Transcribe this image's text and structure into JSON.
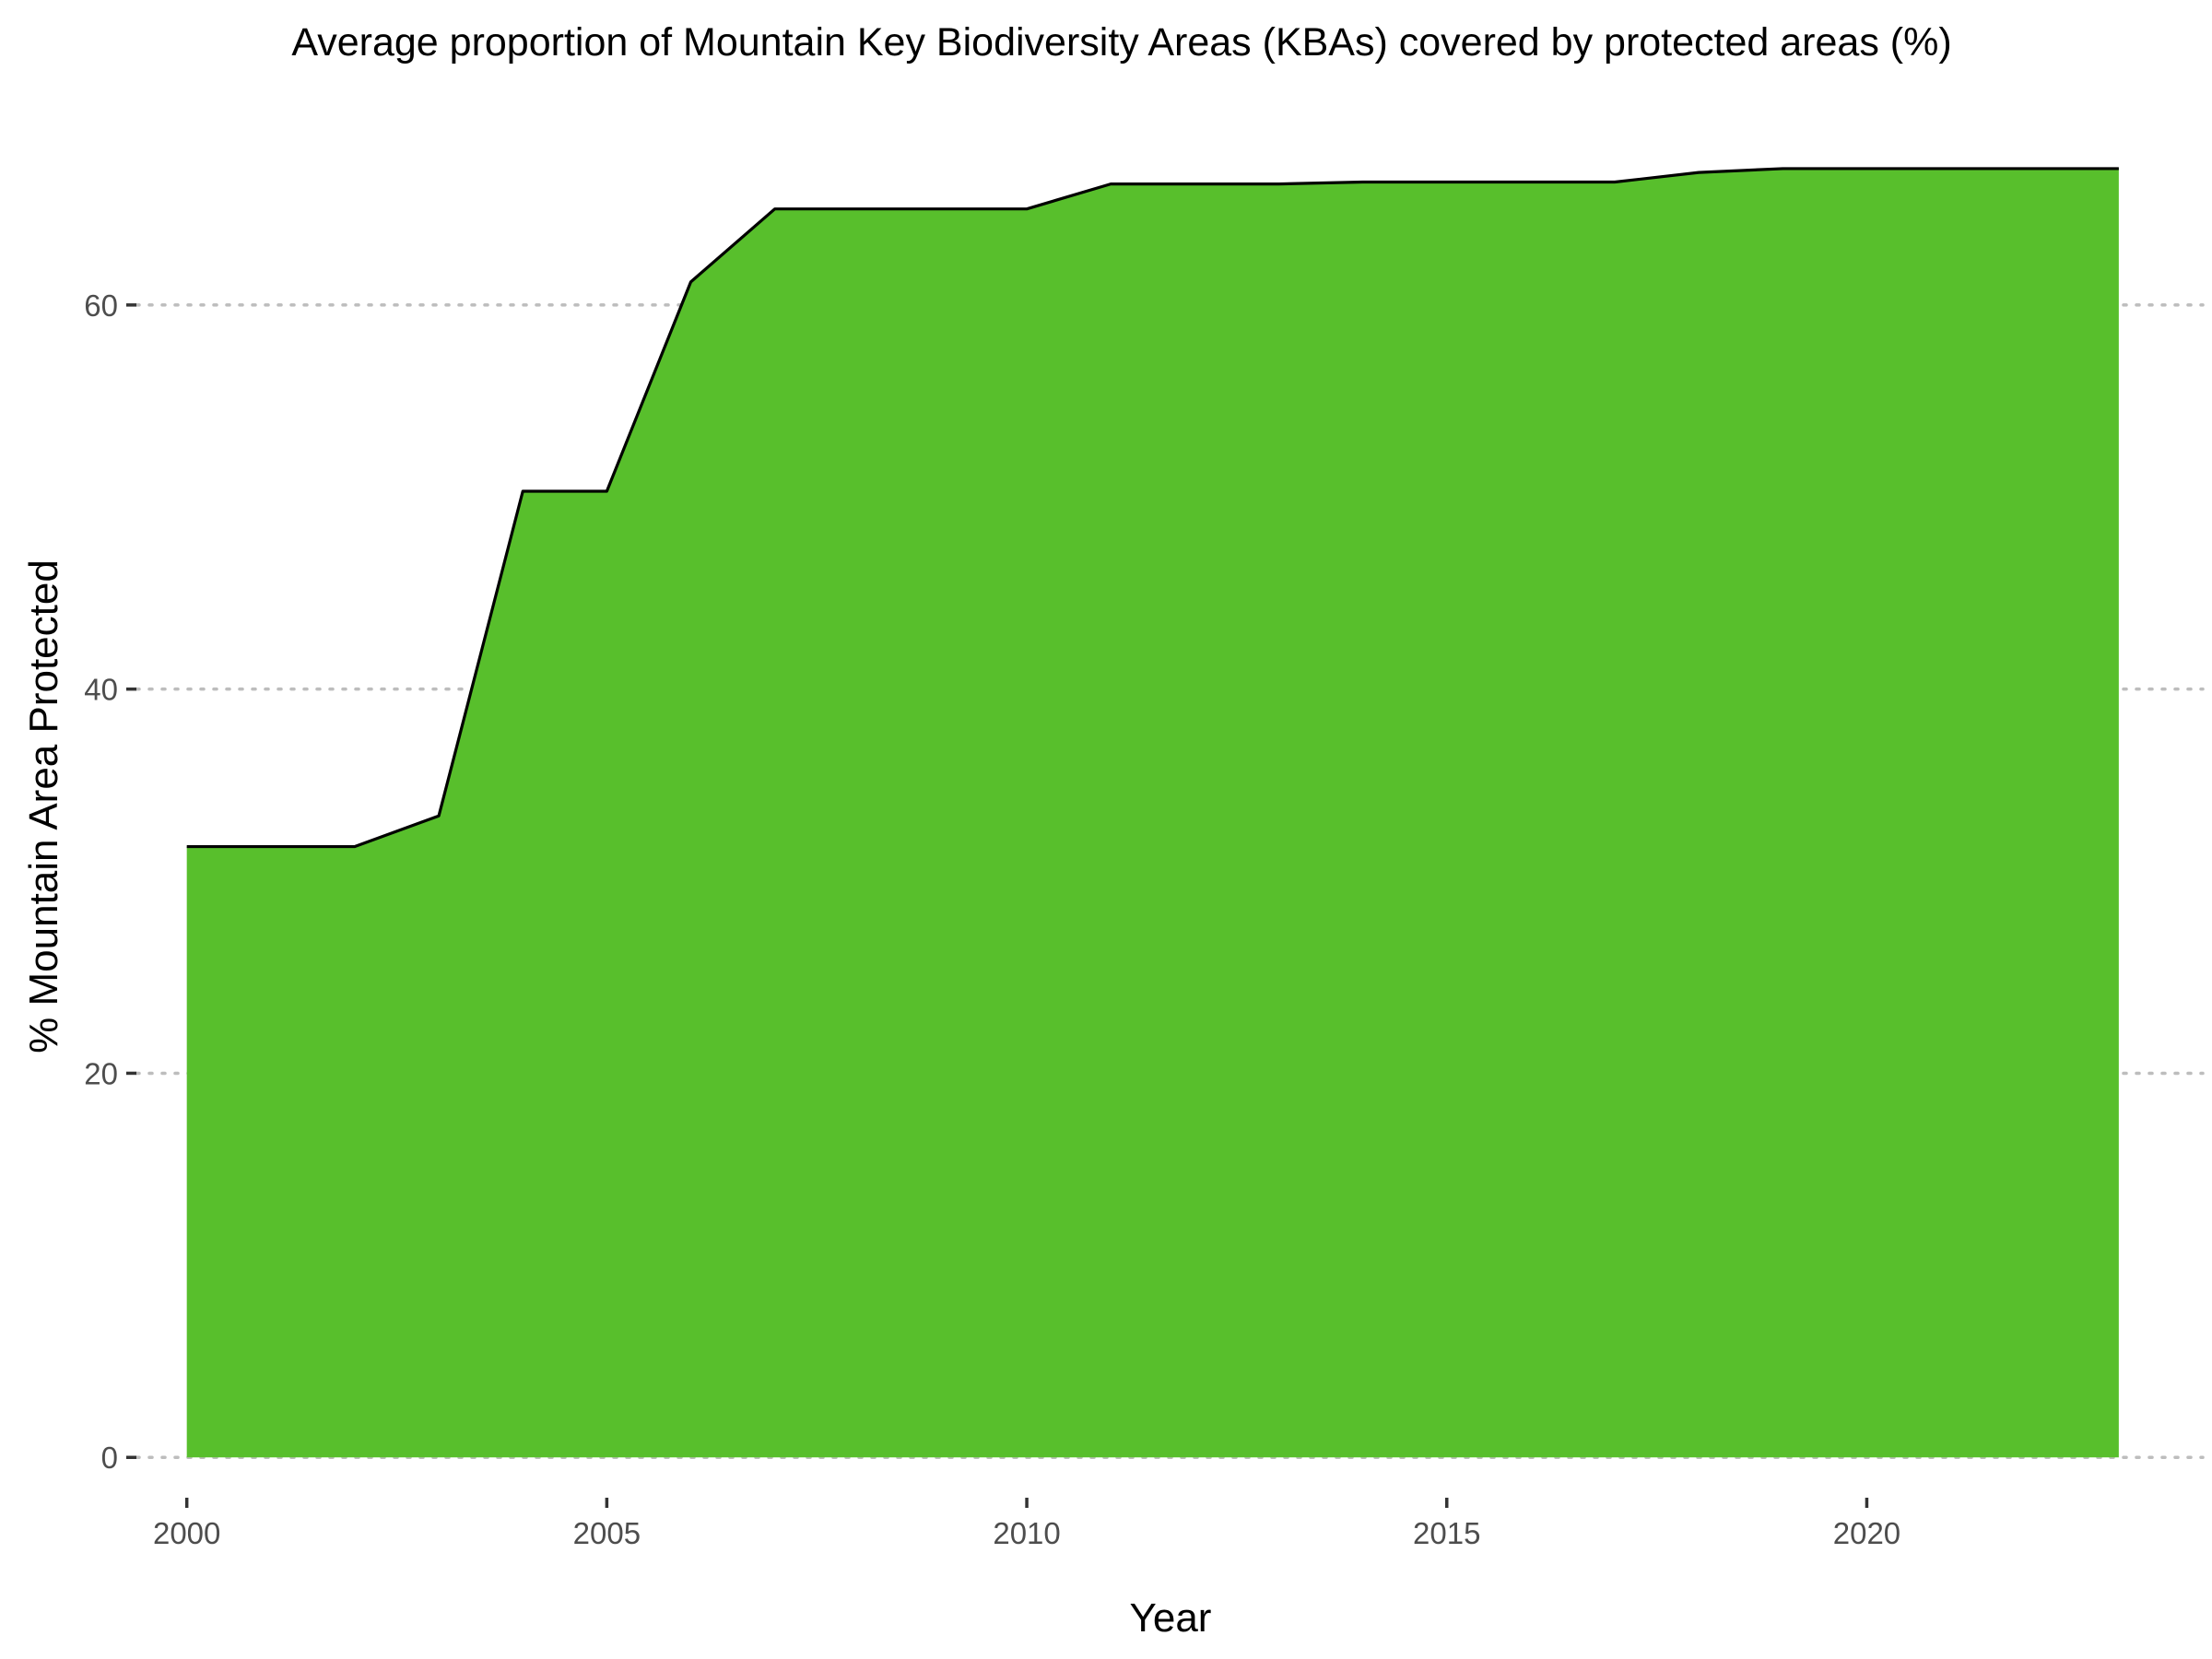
{
  "chart_data": {
    "type": "area",
    "title": "Average proportion of Mountain Key Biodiversity Areas (KBAs) covered by protected areas (%)",
    "xlabel": "Year",
    "ylabel": "% Mountain Area Protected",
    "x": [
      2000,
      2001,
      2002,
      2003,
      2004,
      2005,
      2006,
      2007,
      2008,
      2009,
      2010,
      2011,
      2012,
      2013,
      2014,
      2015,
      2016,
      2017,
      2018,
      2019,
      2020,
      2021,
      2022,
      2023
    ],
    "values": [
      31.8,
      31.8,
      31.8,
      33.4,
      50.3,
      50.3,
      61.2,
      65.0,
      65.0,
      65.0,
      65.0,
      66.3,
      66.3,
      66.3,
      66.4,
      66.4,
      66.4,
      66.4,
      66.9,
      67.1,
      67.1,
      67.1,
      67.1,
      67.1
    ],
    "xlim": [
      1999.4,
      2024.0
    ],
    "ylim": [
      -2.1,
      69.4
    ],
    "x_ticks": [
      2000,
      2005,
      2010,
      2015,
      2020
    ],
    "y_ticks": [
      0,
      20,
      40,
      60
    ],
    "x_tick_labels": [
      "2000",
      "2005",
      "2010",
      "2015",
      "2020"
    ],
    "y_tick_labels": [
      "0",
      "20",
      "40",
      "60"
    ],
    "grid": "horizontal dotted",
    "fill_color": "#58bf2c",
    "line_color": "#000000",
    "legend": "none"
  }
}
